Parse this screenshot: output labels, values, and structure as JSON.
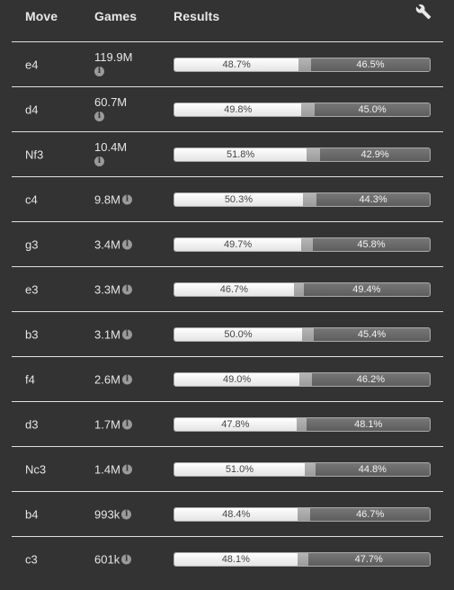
{
  "header": {
    "move": "Move",
    "games": "Games",
    "results": "Results",
    "settings_icon": "wrench-icon"
  },
  "colors": {
    "background": "#333333",
    "white_bar": "#ffffff",
    "draw_bar": "#a9a9a9",
    "black_bar": "#666666",
    "divider": "#e0e0e0"
  },
  "rows": [
    {
      "move": "e4",
      "games": "119.9M",
      "white_label": "48.7%",
      "black_label": "46.5%",
      "white": 48.7,
      "draw": 4.8,
      "black": 46.5,
      "wrap": true
    },
    {
      "move": "d4",
      "games": "60.7M",
      "white_label": "49.8%",
      "black_label": "45.0%",
      "white": 49.8,
      "draw": 5.2,
      "black": 45.0,
      "wrap": true
    },
    {
      "move": "Nf3",
      "games": "10.4M",
      "white_label": "51.8%",
      "black_label": "42.9%",
      "white": 51.8,
      "draw": 5.3,
      "black": 42.9,
      "wrap": true
    },
    {
      "move": "c4",
      "games": "9.8M",
      "white_label": "50.3%",
      "black_label": "44.3%",
      "white": 50.3,
      "draw": 5.4,
      "black": 44.3,
      "wrap": false
    },
    {
      "move": "g3",
      "games": "3.4M",
      "white_label": "49.7%",
      "black_label": "45.8%",
      "white": 49.7,
      "draw": 4.5,
      "black": 45.8,
      "wrap": false
    },
    {
      "move": "e3",
      "games": "3.3M",
      "white_label": "46.7%",
      "black_label": "49.4%",
      "white": 46.7,
      "draw": 3.9,
      "black": 49.4,
      "wrap": false
    },
    {
      "move": "b3",
      "games": "3.1M",
      "white_label": "50.0%",
      "black_label": "45.4%",
      "white": 50.0,
      "draw": 4.6,
      "black": 45.4,
      "wrap": false
    },
    {
      "move": "f4",
      "games": "2.6M",
      "white_label": "49.0%",
      "black_label": "46.2%",
      "white": 49.0,
      "draw": 4.8,
      "black": 46.2,
      "wrap": false
    },
    {
      "move": "d3",
      "games": "1.7M",
      "white_label": "47.8%",
      "black_label": "48.1%",
      "white": 47.8,
      "draw": 4.1,
      "black": 48.1,
      "wrap": false
    },
    {
      "move": "Nc3",
      "games": "1.4M",
      "white_label": "51.0%",
      "black_label": "44.8%",
      "white": 51.0,
      "draw": 4.2,
      "black": 44.8,
      "wrap": false
    },
    {
      "move": "b4",
      "games": "993k",
      "white_label": "48.4%",
      "black_label": "46.7%",
      "white": 48.4,
      "draw": 4.9,
      "black": 46.7,
      "wrap": false
    },
    {
      "move": "c3",
      "games": "601k",
      "white_label": "48.1%",
      "black_label": "47.7%",
      "white": 48.1,
      "draw": 4.2,
      "black": 47.7,
      "wrap": false
    }
  ]
}
